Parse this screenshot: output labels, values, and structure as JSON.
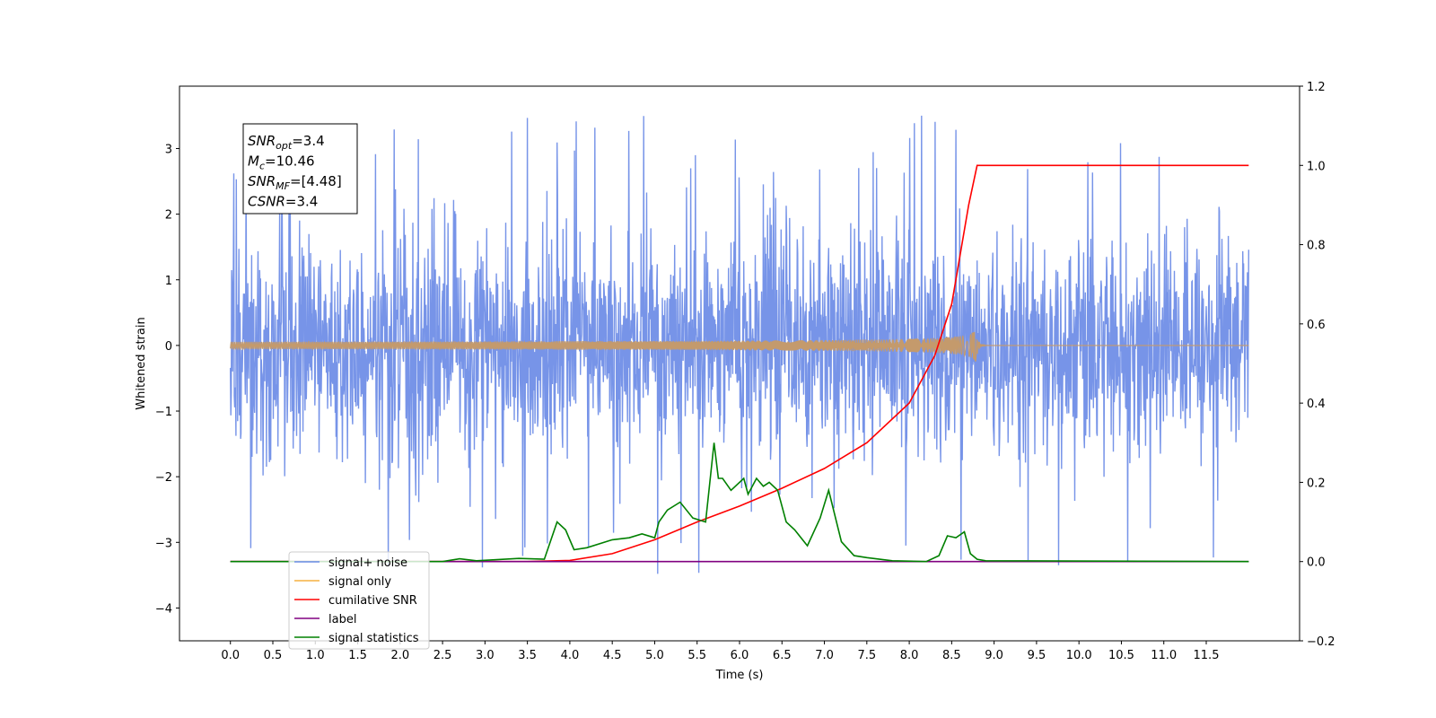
{
  "chart_data": {
    "type": "line",
    "xlabel": "Time (s)",
    "ylabel": "Whitened strain",
    "xlim": [
      -0.6,
      12.6
    ],
    "ylim": [
      -4.5,
      3.95
    ],
    "y2lim": [
      -0.2,
      1.2
    ],
    "xticks": [
      "0.0",
      "0.5",
      "1.0",
      "1.5",
      "2.0",
      "2.5",
      "3.0",
      "3.5",
      "4.0",
      "4.5",
      "5.0",
      "5.5",
      "6.0",
      "6.5",
      "7.0",
      "7.5",
      "8.0",
      "8.5",
      "9.0",
      "9.5",
      "10.0",
      "10.5",
      "11.0",
      "11.5"
    ],
    "yticks": [
      "−4",
      "−3",
      "−2",
      "−1",
      "0",
      "1",
      "2",
      "3"
    ],
    "y2ticks": [
      "−0.2",
      "0.0",
      "0.2",
      "0.4",
      "0.6",
      "0.8",
      "1.0",
      "1.2"
    ],
    "grid": false,
    "legend_position": "lower-left",
    "annotation": {
      "lines": [
        {
          "base": "SNR",
          "sub": "opt",
          "rest": "=3.4"
        },
        {
          "base": "M",
          "sub": "c",
          "rest": "=10.46"
        },
        {
          "base": "SNR",
          "sub": "MF",
          "rest": "=[4.48]"
        },
        {
          "base": "CSNR",
          "sub": "",
          "rest": "=3.4"
        }
      ]
    },
    "series": [
      {
        "name": "signal+ noise",
        "color": "#6b8be6",
        "axis": "left",
        "t_start": 0.0,
        "t_end": 12.0,
        "std": 0.85,
        "max": 3.6,
        "min": -4.1
      },
      {
        "name": "signal only",
        "color": "#f5b041",
        "axis": "left",
        "chirp": {
          "t_start": 0.0,
          "t_merge": 8.8,
          "t_end": 12.0,
          "peak_amplitude": 0.38
        }
      },
      {
        "name": "cumilative SNR",
        "color": "#ff0000",
        "axis": "right",
        "x": [
          0.0,
          3.5,
          4.0,
          4.5,
          5.0,
          5.5,
          6.0,
          6.5,
          7.0,
          7.5,
          8.0,
          8.3,
          8.5,
          8.7,
          8.8,
          12.0
        ],
        "y": [
          0.0,
          0.0,
          0.003,
          0.02,
          0.055,
          0.1,
          0.14,
          0.185,
          0.235,
          0.3,
          0.4,
          0.52,
          0.65,
          0.9,
          1.0,
          1.0
        ]
      },
      {
        "name": "label",
        "color": "#800080",
        "axis": "right",
        "x": [
          0.0,
          12.0
        ],
        "y": [
          0.0,
          0.0
        ]
      },
      {
        "name": "signal statistics",
        "color": "#008000",
        "axis": "right",
        "x": [
          0.0,
          2.5,
          2.7,
          2.9,
          3.4,
          3.7,
          3.85,
          3.95,
          4.05,
          4.2,
          4.5,
          4.7,
          4.85,
          5.0,
          5.05,
          5.15,
          5.3,
          5.45,
          5.6,
          5.7,
          5.75,
          5.8,
          5.9,
          6.05,
          6.1,
          6.2,
          6.28,
          6.35,
          6.45,
          6.55,
          6.65,
          6.8,
          6.95,
          7.05,
          7.2,
          7.35,
          7.5,
          7.8,
          8.2,
          8.35,
          8.45,
          8.55,
          8.65,
          8.72,
          8.8,
          8.9,
          12.0
        ],
        "y": [
          0.0,
          0.0,
          0.007,
          0.002,
          0.008,
          0.006,
          0.1,
          0.08,
          0.03,
          0.035,
          0.055,
          0.06,
          0.07,
          0.06,
          0.1,
          0.13,
          0.15,
          0.11,
          0.1,
          0.3,
          0.21,
          0.21,
          0.18,
          0.21,
          0.17,
          0.21,
          0.19,
          0.2,
          0.18,
          0.1,
          0.08,
          0.04,
          0.11,
          0.18,
          0.05,
          0.015,
          0.01,
          0.002,
          0.0,
          0.015,
          0.065,
          0.06,
          0.075,
          0.02,
          0.006,
          0.002,
          0.0
        ]
      }
    ]
  }
}
